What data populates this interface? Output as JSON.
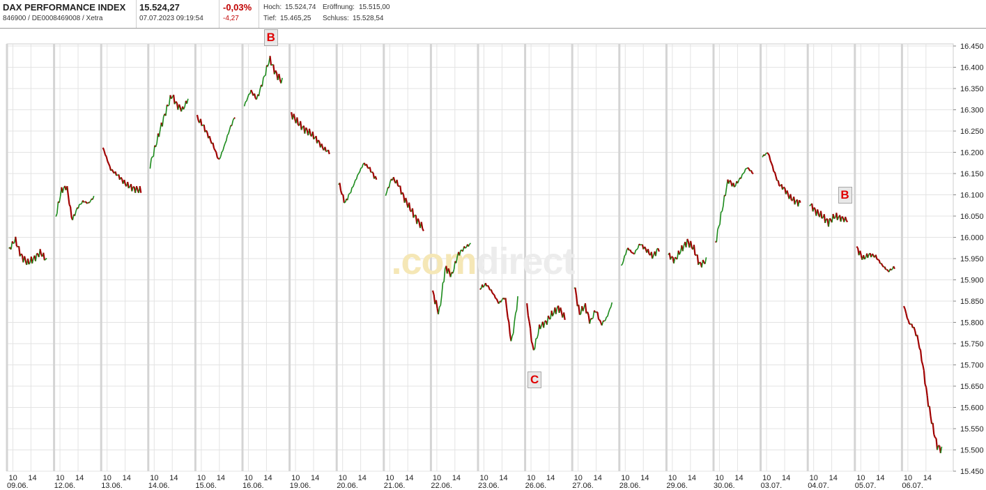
{
  "header": {
    "name": "DAX PERFORMANCE INDEX",
    "id_line": "846900 / DE0008469008 / Xetra",
    "price": "15.524,27",
    "datetime": "07.07.2023 09:19:54",
    "change_pct": "-0,03%",
    "change_abs": "-4,27",
    "high_label": "Hoch:",
    "high": "15.524,74",
    "open_label": "Eröffnung:",
    "open": "15.515,00",
    "low_label": "Tief:",
    "low": "15.465,25",
    "close_label": "Schluss:",
    "close": "15.528,54"
  },
  "watermark": {
    "part1": ".com",
    "part2": "direct"
  },
  "colors": {
    "up": "#1a8a1a",
    "down": "#a00000",
    "grid": "#e3e3e3",
    "separator": "#d4d4d4",
    "marker_text": "#e00000"
  },
  "chart_data": {
    "type": "line",
    "y_ticks": [
      "16.450",
      "16.400",
      "16.350",
      "16.300",
      "16.250",
      "16.200",
      "16.150",
      "16.100",
      "16.050",
      "16.000",
      "15.950",
      "15.900",
      "15.850",
      "15.800",
      "15.750",
      "15.700",
      "15.650",
      "15.600",
      "15.550",
      "15.500",
      "15.450"
    ],
    "ylim": [
      15450,
      16460
    ],
    "days": [
      "09.06.",
      "12.06.",
      "13.06.",
      "14.06.",
      "15.06.",
      "16.06.",
      "19.06.",
      "20.06.",
      "21.06.",
      "22.06.",
      "23.06.",
      "26.06.",
      "27.06.",
      "28.06.",
      "29.06.",
      "30.06.",
      "03.07.",
      "04.07.",
      "05.07.",
      "06.07."
    ],
    "hour_ticks": [
      "10",
      "14"
    ],
    "annotations": [
      {
        "label": "B",
        "day": 5,
        "frac": 0.7
      },
      {
        "label": "C",
        "day": 11,
        "frac": 0.2
      },
      {
        "label": "B",
        "day": 17,
        "frac": 0.93
      }
    ],
    "series": [
      {
        "day": "09.06.",
        "values": [
          15970,
          15995,
          15955,
          15940,
          15950,
          15965,
          15945
        ]
      },
      {
        "day": "12.06.",
        "values": [
          16050,
          16110,
          16120,
          16040,
          16070,
          16085,
          16080,
          16095
        ]
      },
      {
        "day": "13.06.",
        "values": [
          16210,
          16160,
          16145,
          16125,
          16115,
          16110
        ]
      },
      {
        "day": "14.06.",
        "values": [
          16170,
          16215,
          16260,
          16300,
          16335,
          16310,
          16300,
          16325
        ]
      },
      {
        "day": "15.06.",
        "values": [
          16280,
          16265,
          16240,
          16215,
          16180,
          16215,
          16255,
          16285
        ]
      },
      {
        "day": "16.06.",
        "values": [
          16310,
          16345,
          16325,
          16370,
          16420,
          16385,
          16365
        ]
      },
      {
        "day": "19.06.",
        "values": [
          16290,
          16270,
          16255,
          16245,
          16230,
          16210,
          16200
        ]
      },
      {
        "day": "20.06.",
        "values": [
          16130,
          16080,
          16110,
          16145,
          16175,
          16160,
          16135
        ]
      },
      {
        "day": "21.06.",
        "values": [
          16100,
          16140,
          16125,
          16090,
          16065,
          16040,
          16020
        ]
      },
      {
        "day": "22.06.",
        "values": [
          15870,
          15820,
          15930,
          15910,
          15960,
          15975,
          15985
        ]
      },
      {
        "day": "23.06.",
        "values": [
          15880,
          15890,
          15870,
          15845,
          15860,
          15750,
          15855
        ]
      },
      {
        "day": "26.06.",
        "values": [
          15840,
          15730,
          15790,
          15800,
          15820,
          15835,
          15810
        ]
      },
      {
        "day": "27.06.",
        "values": [
          15890,
          15820,
          15840,
          15800,
          15830,
          15795,
          15810,
          15845
        ]
      },
      {
        "day": "28.06.",
        "values": [
          15930,
          15975,
          15960,
          15985,
          15970,
          15955,
          15975
        ]
      },
      {
        "day": "29.06.",
        "values": [
          15960,
          15945,
          15970,
          15990,
          15975,
          15935,
          15945
        ]
      },
      {
        "day": "30.06.",
        "values": [
          15985,
          16060,
          16135,
          16120,
          16140,
          16165,
          16150
        ]
      },
      {
        "day": "03.07.",
        "values": [
          16190,
          16200,
          16160,
          16125,
          16115,
          16095,
          16085,
          16080
        ]
      },
      {
        "day": "04.07.",
        "values": [
          16080,
          16060,
          16050,
          16035,
          16050,
          16045,
          16040
        ]
      },
      {
        "day": "05.07.",
        "values": [
          15975,
          15950,
          15960,
          15955,
          15935,
          15920,
          15930
        ]
      },
      {
        "day": "06.07.",
        "values": [
          15840,
          15800,
          15790,
          15760,
          15700,
          15620,
          15560,
          15510,
          15500
        ]
      }
    ]
  }
}
